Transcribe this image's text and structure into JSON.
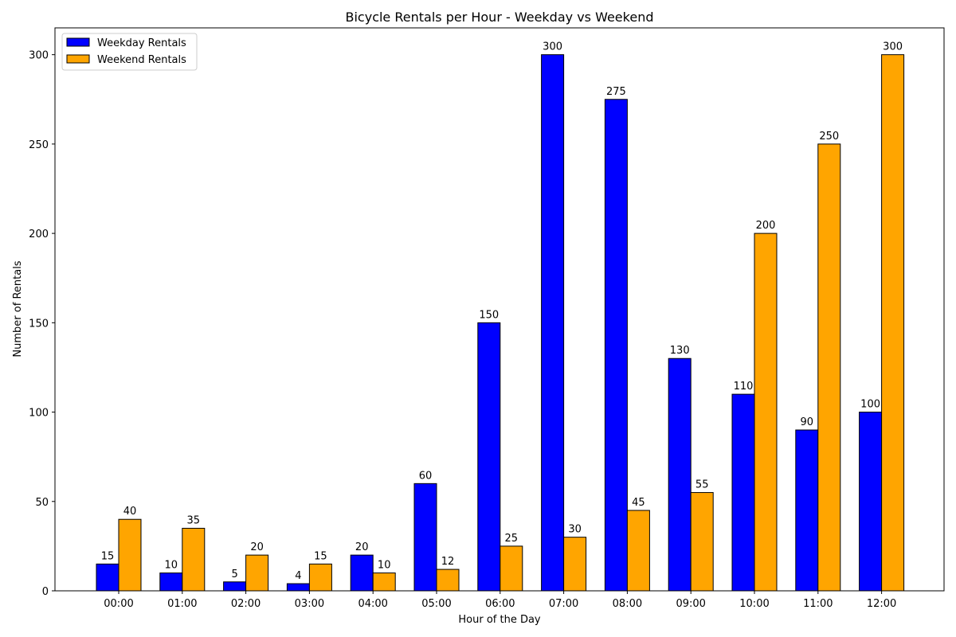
{
  "chart_data": {
    "type": "bar",
    "title": "Bicycle Rentals per Hour - Weekday vs Weekend",
    "xlabel": "Hour of the Day",
    "ylabel": "Number of Rentals",
    "categories": [
      "00:00",
      "01:00",
      "02:00",
      "03:00",
      "04:00",
      "05:00",
      "06:00",
      "07:00",
      "08:00",
      "09:00",
      "10:00",
      "11:00",
      "12:00"
    ],
    "series": [
      {
        "name": "Weekday Rentals",
        "color": "#0000ff",
        "values": [
          15,
          10,
          5,
          4,
          20,
          60,
          150,
          300,
          275,
          130,
          110,
          90,
          100
        ]
      },
      {
        "name": "Weekend Rentals",
        "color": "#ffa500",
        "values": [
          40,
          35,
          20,
          15,
          10,
          12,
          25,
          30,
          45,
          55,
          200,
          250,
          300
        ]
      }
    ],
    "ylim": [
      0,
      315
    ],
    "yticks": [
      0,
      50,
      100,
      150,
      200,
      250,
      300
    ],
    "grid": false,
    "legend_position": "top-left",
    "data_labels": true
  }
}
